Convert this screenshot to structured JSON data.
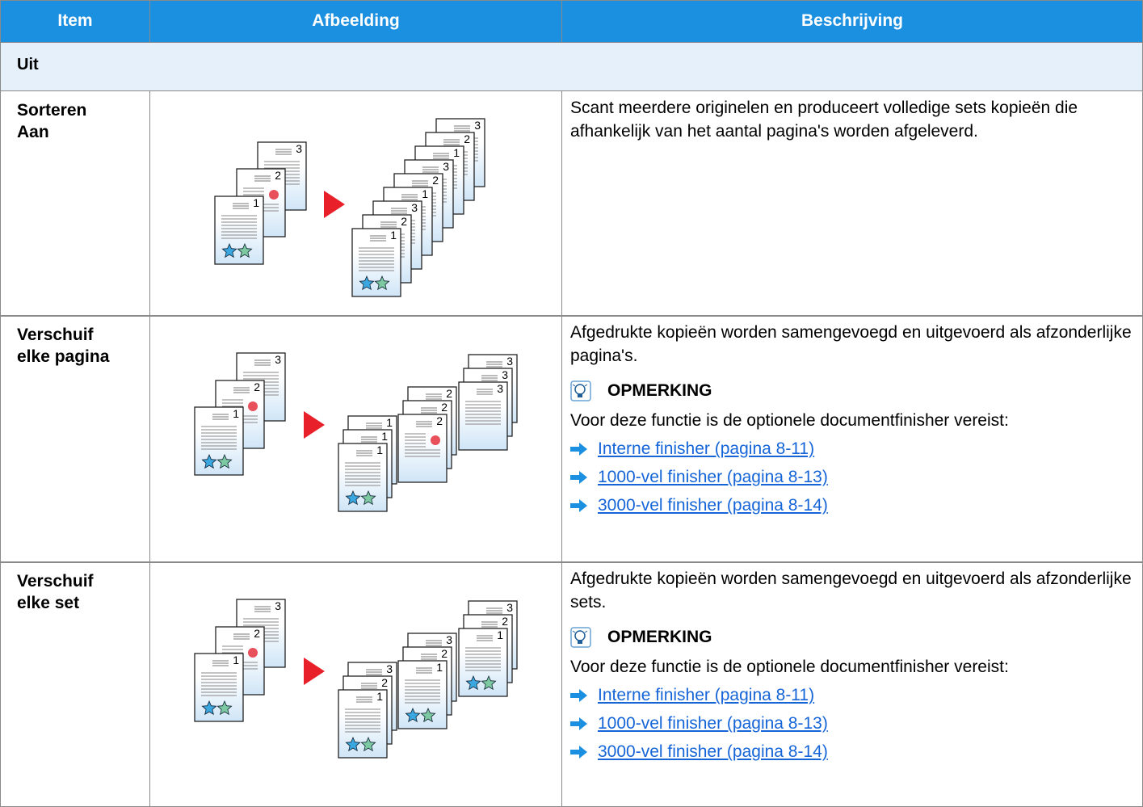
{
  "table": {
    "header": [
      "Item",
      "Afbeelding",
      "Beschrijving"
    ],
    "section": "Uit",
    "rows": [
      {
        "item": [
          "Sorteren",
          "Aan"
        ],
        "description": "Scant meerdere originelen en produceert volledige sets kopieën die afhankelijk van het aantal pagina's worden afgeleverd."
      },
      {
        "item": [
          "Verschuif",
          "elke pagina"
        ],
        "description": "Afgedrukte kopieën worden samengevoegd en uitgevoerd als afzonderlijke pagina's.",
        "note_title": "OPMERKING",
        "note_text": "Voor deze functie is de optionele documentfinisher vereist:",
        "links": [
          "Interne finisher (pagina 8-11)",
          "1000-vel finisher (pagina 8-13)",
          "3000-vel finisher (pagina 8-14)"
        ]
      },
      {
        "item": [
          "Verschuif",
          "elke set"
        ],
        "description": "Afgedrukte kopieën worden samengevoegd en uitgevoerd als afzonderlijke sets.",
        "note_title": "OPMERKING",
        "note_text": "Voor deze functie is de optionele documentfinisher vereist:",
        "links": [
          "Interne finisher (pagina 8-11)",
          "1000-vel finisher (pagina 8-13)",
          "3000-vel finisher (pagina 8-14)"
        ]
      }
    ]
  },
  "page_labels": [
    "1",
    "2",
    "3"
  ]
}
